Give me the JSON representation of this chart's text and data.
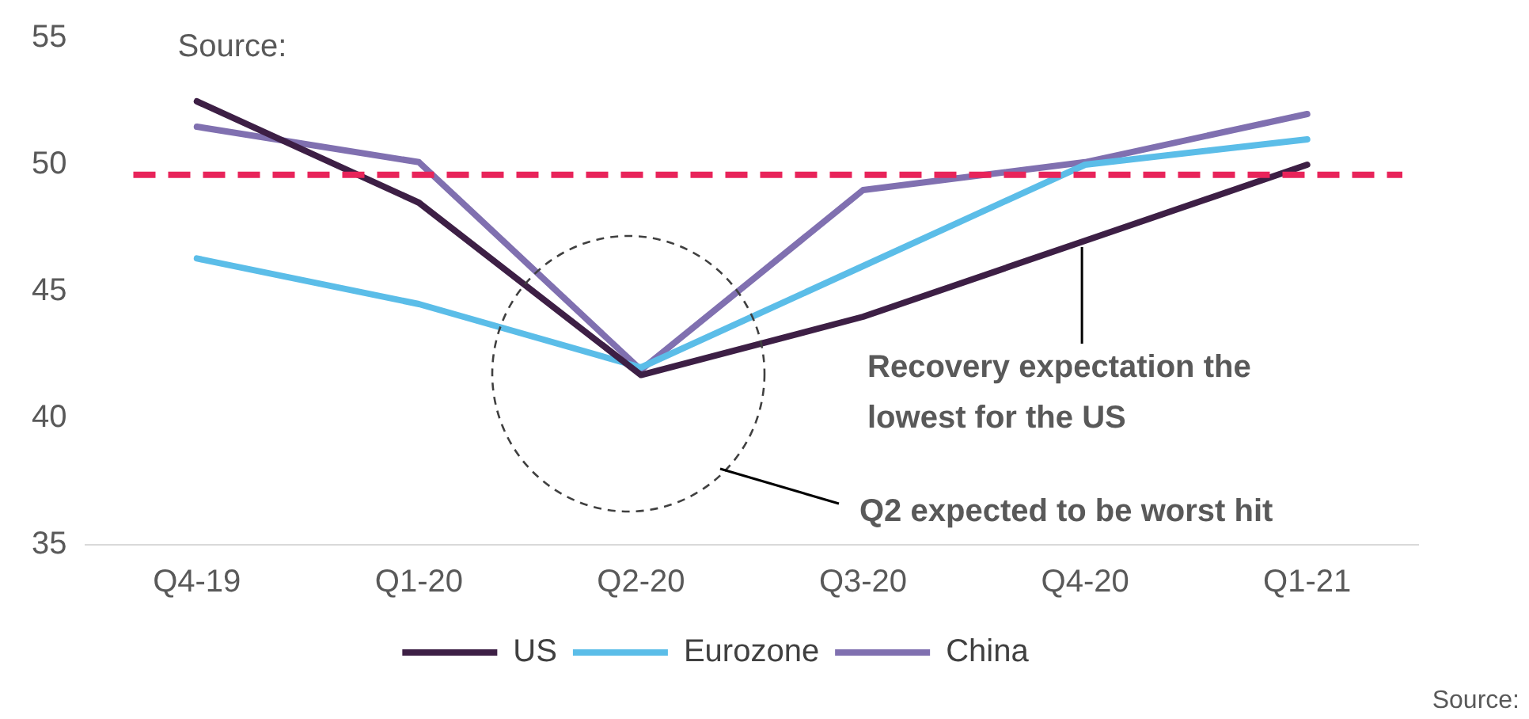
{
  "chart_data": {
    "type": "line",
    "categories": [
      "Q4-19",
      "Q1-20",
      "Q2-20",
      "Q3-20",
      "Q4-20",
      "Q1-21"
    ],
    "series": [
      {
        "name": "US",
        "color": "#3d1f45",
        "values": [
          52.5,
          48.5,
          41.7,
          44,
          47,
          50
        ]
      },
      {
        "name": "Eurozone",
        "color": "#5bbde8",
        "values": [
          46.3,
          44.5,
          42,
          46,
          50,
          51
        ]
      },
      {
        "name": "China",
        "color": "#8070b0",
        "values": [
          51.5,
          50.1,
          41.9,
          49,
          50.1,
          52
        ]
      }
    ],
    "ylim": [
      35,
      55
    ],
    "yticks": [
      35,
      40,
      45,
      50,
      55
    ],
    "grid": false,
    "legend": "bottom",
    "marker": "none",
    "line_style": "solid",
    "ref_lines": [
      {
        "axis": "y",
        "value": 49.6,
        "color": "#e8245a",
        "line_style": "dashed"
      }
    ],
    "annotations": [
      "Source:",
      {
        "text": "Recovery expectation the lowest for the US",
        "x": "Q4-20",
        "y": 47
      },
      "Q2 expected to be worst hit",
      "Source:"
    ]
  }
}
